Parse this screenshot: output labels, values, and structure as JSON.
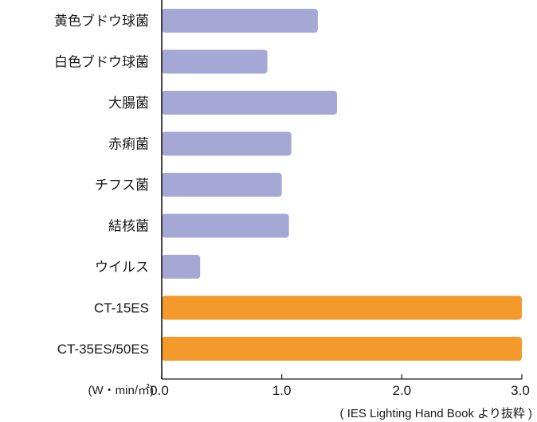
{
  "chart_data": {
    "type": "bar",
    "orientation": "horizontal",
    "categories": [
      "黄色ブドウ球菌",
      "白色ブドウ球菌",
      "大腸菌",
      "赤痢菌",
      "チフス菌",
      "結核菌",
      "ウイルス",
      "CT-15ES",
      "CT-35ES/50ES"
    ],
    "values": [
      1.3,
      0.88,
      1.46,
      1.08,
      1.0,
      1.06,
      0.32,
      3.0,
      3.0
    ],
    "bar_colors": [
      "#a5a8d4",
      "#a5a8d4",
      "#a5a8d4",
      "#a5a8d4",
      "#a5a8d4",
      "#a5a8d4",
      "#a5a8d4",
      "#f39a2a",
      "#f39a2a"
    ],
    "xlim": [
      0,
      3.0
    ],
    "xticks": [
      "0.0",
      "1.0",
      "2.0",
      "3.0"
    ],
    "xunit": "(W・min/㎡)",
    "source": "( IES Lighting Hand Book より抜粋 )",
    "grid": false
  }
}
